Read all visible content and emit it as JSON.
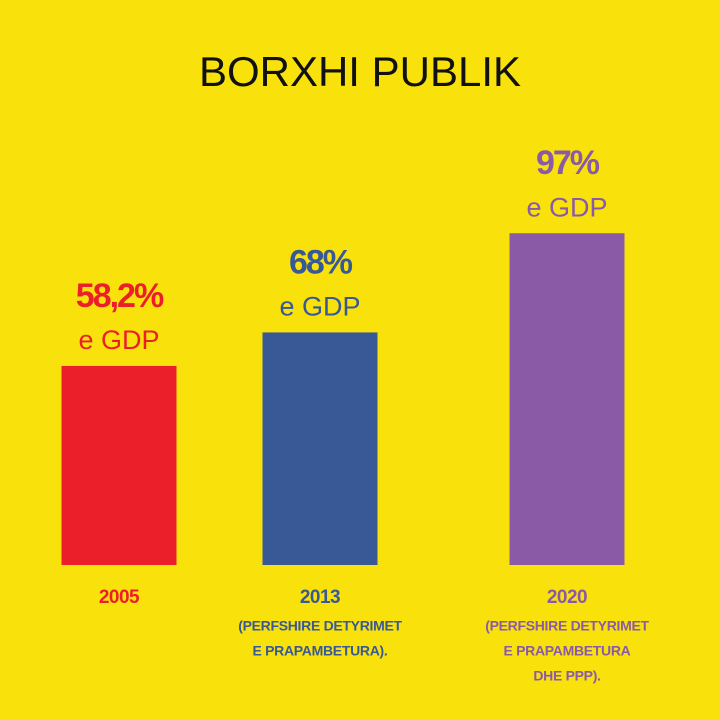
{
  "chart_data": {
    "type": "bar",
    "title": "BORXHI PUBLIK",
    "categories": [
      "2005",
      "2013",
      "2020"
    ],
    "category_notes": [
      [],
      [
        "(PERFSHIRE DETYRIMET",
        "E PRAPAMBETURA)."
      ],
      [
        "(PERFSHIRE DETYRIMET",
        "E PRAPAMBETURA",
        "DHE PPP)."
      ]
    ],
    "values": [
      58.2,
      68,
      97
    ],
    "value_labels": [
      "58,2%",
      "68%",
      "97%"
    ],
    "value_notes": [
      "e GDP",
      "e GDP",
      "e GDP"
    ],
    "colors": [
      "#ea1f2a",
      "#385896",
      "#8b5aa7"
    ]
  }
}
